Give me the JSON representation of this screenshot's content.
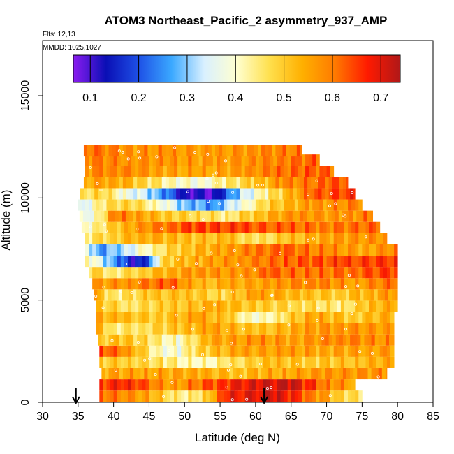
{
  "chart_data": {
    "type": "heatmap",
    "title": "ATOM3 Northeast_Pacific_2 asymmetry_937_AMP",
    "flights_label": "Flts: 12,13",
    "dates_label": "MMDD: 1025,1027",
    "xlabel": "Latitude (deg N)",
    "ylabel": "Altitude (m)",
    "xlim": [
      30,
      85
    ],
    "ylim": [
      0,
      17700
    ],
    "x_ticks": [
      "30",
      "35",
      "40",
      "45",
      "50",
      "55",
      "60",
      "65",
      "70",
      "75",
      "80",
      "85"
    ],
    "y_ticks": [
      "0",
      "5000",
      "10000",
      "15000"
    ],
    "colorbar": {
      "range": [
        0.065,
        0.74
      ],
      "tick_labels": [
        "0.1",
        "0.2",
        "0.3",
        "0.4",
        "0.5",
        "0.6",
        "0.7"
      ],
      "colors": [
        "#8b1cf0",
        "#0a0fb5",
        "#1e50e6",
        "#3aa8ff",
        "#d9f0ff",
        "#ffffd0",
        "#ffe04d",
        "#ffb000",
        "#ff7a00",
        "#ff1a00",
        "#b01818"
      ]
    },
    "arrows_latitude": [
      34.7,
      61.2
    ],
    "layers": [
      {
        "alt": 300,
        "lat": [
          38,
          75
        ],
        "stops": [
          [
            38,
            0.62
          ],
          [
            45,
            0.55
          ],
          [
            50,
            0.42
          ],
          [
            53,
            0.5
          ],
          [
            56,
            0.67
          ],
          [
            63,
            0.72
          ],
          [
            68,
            0.6
          ],
          [
            72,
            0.5
          ],
          [
            75,
            0.45
          ]
        ]
      },
      {
        "alt": 850,
        "lat": [
          38,
          74
        ],
        "stops": [
          [
            38,
            0.65
          ],
          [
            42,
            0.68
          ],
          [
            48,
            0.55
          ],
          [
            55,
            0.66
          ],
          [
            60,
            0.7
          ],
          [
            65,
            0.72
          ],
          [
            70,
            0.6
          ],
          [
            74,
            0.55
          ]
        ]
      },
      {
        "alt": 1400,
        "lat": [
          38.3,
          78.5
        ],
        "stops": [
          [
            38.3,
            0.55
          ],
          [
            45,
            0.56
          ],
          [
            52,
            0.54
          ],
          [
            58,
            0.52
          ],
          [
            64,
            0.55
          ],
          [
            70,
            0.57
          ],
          [
            78.5,
            0.58
          ]
        ]
      },
      {
        "alt": 1950,
        "lat": [
          38,
          79.5
        ],
        "stops": [
          [
            38,
            0.5
          ],
          [
            42,
            0.5
          ],
          [
            47,
            0.46
          ],
          [
            52,
            0.4
          ],
          [
            56,
            0.45
          ],
          [
            62,
            0.52
          ],
          [
            68,
            0.5
          ],
          [
            74,
            0.52
          ],
          [
            79.5,
            0.55
          ]
        ]
      },
      {
        "alt": 2500,
        "lat": [
          38,
          79.5
        ],
        "stops": [
          [
            38,
            0.65
          ],
          [
            42,
            0.58
          ],
          [
            46,
            0.42
          ],
          [
            49,
            0.38
          ],
          [
            52,
            0.5
          ],
          [
            58,
            0.55
          ],
          [
            64,
            0.56
          ],
          [
            70,
            0.55
          ],
          [
            76,
            0.56
          ],
          [
            79.5,
            0.57
          ]
        ]
      },
      {
        "alt": 3050,
        "lat": [
          37.8,
          79.5
        ],
        "stops": [
          [
            37.8,
            0.5
          ],
          [
            42,
            0.52
          ],
          [
            46,
            0.45
          ],
          [
            49,
            0.4
          ],
          [
            54,
            0.55
          ],
          [
            60,
            0.57
          ],
          [
            66,
            0.56
          ],
          [
            72,
            0.6
          ],
          [
            79.5,
            0.57
          ]
        ]
      },
      {
        "alt": 3600,
        "lat": [
          37.5,
          79.5
        ],
        "stops": [
          [
            37.5,
            0.55
          ],
          [
            40,
            0.45
          ],
          [
            44,
            0.47
          ],
          [
            50,
            0.52
          ],
          [
            54,
            0.56
          ],
          [
            60,
            0.5
          ],
          [
            66,
            0.55
          ],
          [
            72,
            0.58
          ],
          [
            79.5,
            0.56
          ]
        ]
      },
      {
        "alt": 4150,
        "lat": [
          37.5,
          79.5
        ],
        "stops": [
          [
            37.5,
            0.55
          ],
          [
            41,
            0.52
          ],
          [
            46,
            0.5
          ],
          [
            52,
            0.56
          ],
          [
            56,
            0.5
          ],
          [
            60,
            0.38
          ],
          [
            63,
            0.45
          ],
          [
            68,
            0.55
          ],
          [
            74,
            0.5
          ],
          [
            79.5,
            0.55
          ]
        ]
      },
      {
        "alt": 4700,
        "lat": [
          37.5,
          80
        ],
        "stops": [
          [
            37.5,
            0.52
          ],
          [
            42,
            0.46
          ],
          [
            48,
            0.5
          ],
          [
            54,
            0.54
          ],
          [
            60,
            0.5
          ],
          [
            66,
            0.48
          ],
          [
            72,
            0.45
          ],
          [
            76,
            0.52
          ],
          [
            80,
            0.55
          ]
        ]
      },
      {
        "alt": 5250,
        "lat": [
          37.2,
          80
        ],
        "stops": [
          [
            37.2,
            0.55
          ],
          [
            40,
            0.45
          ],
          [
            45,
            0.5
          ],
          [
            50,
            0.52
          ],
          [
            55,
            0.48
          ],
          [
            60,
            0.56
          ],
          [
            66,
            0.52
          ],
          [
            72,
            0.5
          ],
          [
            76,
            0.54
          ],
          [
            80,
            0.58
          ]
        ]
      },
      {
        "alt": 5800,
        "lat": [
          37,
          80
        ],
        "stops": [
          [
            37,
            0.56
          ],
          [
            42,
            0.58
          ],
          [
            48,
            0.63
          ],
          [
            52,
            0.52
          ],
          [
            56,
            0.54
          ],
          [
            62,
            0.56
          ],
          [
            68,
            0.6
          ],
          [
            74,
            0.56
          ],
          [
            80,
            0.62
          ]
        ]
      },
      {
        "alt": 6350,
        "lat": [
          36.5,
          80
        ],
        "stops": [
          [
            36.5,
            0.5
          ],
          [
            40,
            0.45
          ],
          [
            44,
            0.5
          ],
          [
            48,
            0.55
          ],
          [
            52,
            0.58
          ],
          [
            58,
            0.56
          ],
          [
            62,
            0.62
          ],
          [
            68,
            0.6
          ],
          [
            74,
            0.62
          ],
          [
            80,
            0.66
          ]
        ]
      },
      {
        "alt": 6900,
        "lat": [
          36,
          80
        ],
        "stops": [
          [
            36,
            0.45
          ],
          [
            39,
            0.3
          ],
          [
            41,
            0.22
          ],
          [
            43,
            0.12
          ],
          [
            45,
            0.2
          ],
          [
            47,
            0.5
          ],
          [
            52,
            0.55
          ],
          [
            58,
            0.58
          ],
          [
            64,
            0.62
          ],
          [
            72,
            0.64
          ],
          [
            80,
            0.66
          ]
        ]
      },
      {
        "alt": 7450,
        "lat": [
          36,
          80
        ],
        "stops": [
          [
            36,
            0.4
          ],
          [
            38,
            0.25
          ],
          [
            42,
            0.34
          ],
          [
            46,
            0.45
          ],
          [
            50,
            0.52
          ],
          [
            56,
            0.56
          ],
          [
            60,
            0.6
          ],
          [
            64,
            0.62
          ],
          [
            70,
            0.58
          ],
          [
            76,
            0.55
          ],
          [
            80,
            0.6
          ]
        ]
      },
      {
        "alt": 8000,
        "lat": [
          36,
          78.5
        ],
        "stops": [
          [
            36,
            0.45
          ],
          [
            40,
            0.5
          ],
          [
            44,
            0.55
          ],
          [
            50,
            0.52
          ],
          [
            56,
            0.52
          ],
          [
            60,
            0.45
          ],
          [
            64,
            0.5
          ],
          [
            70,
            0.56
          ],
          [
            78.5,
            0.58
          ]
        ]
      },
      {
        "alt": 8550,
        "lat": [
          35.5,
          77.5
        ],
        "stops": [
          [
            35.5,
            0.4
          ],
          [
            38,
            0.45
          ],
          [
            42,
            0.55
          ],
          [
            48,
            0.62
          ],
          [
            52,
            0.66
          ],
          [
            58,
            0.64
          ],
          [
            64,
            0.62
          ],
          [
            70,
            0.6
          ],
          [
            77.5,
            0.62
          ]
        ]
      },
      {
        "alt": 9100,
        "lat": [
          35.2,
          76.5
        ],
        "stops": [
          [
            35.2,
            0.35
          ],
          [
            38,
            0.42
          ],
          [
            40,
            0.6
          ],
          [
            44,
            0.55
          ],
          [
            48,
            0.5
          ],
          [
            52,
            0.48
          ],
          [
            56,
            0.45
          ],
          [
            60,
            0.52
          ],
          [
            66,
            0.58
          ],
          [
            72,
            0.56
          ],
          [
            76.5,
            0.6
          ]
        ]
      },
      {
        "alt": 9650,
        "lat": [
          35,
          75
        ],
        "stops": [
          [
            35,
            0.3
          ],
          [
            38,
            0.45
          ],
          [
            42,
            0.5
          ],
          [
            46,
            0.42
          ],
          [
            50,
            0.3
          ],
          [
            54,
            0.25
          ],
          [
            58,
            0.38
          ],
          [
            62,
            0.5
          ],
          [
            68,
            0.56
          ],
          [
            75,
            0.6
          ]
        ]
      },
      {
        "alt": 10200,
        "lat": [
          35.3,
          74
        ],
        "stops": [
          [
            35.3,
            0.45
          ],
          [
            38,
            0.5
          ],
          [
            42,
            0.38
          ],
          [
            46,
            0.3
          ],
          [
            50,
            0.12
          ],
          [
            54,
            0.1
          ],
          [
            58,
            0.32
          ],
          [
            62,
            0.45
          ],
          [
            68,
            0.62
          ],
          [
            74,
            0.66
          ]
        ]
      },
      {
        "alt": 10750,
        "lat": [
          35.8,
          73
        ],
        "stops": [
          [
            35.8,
            0.55
          ],
          [
            40,
            0.56
          ],
          [
            44,
            0.5
          ],
          [
            48,
            0.42
          ],
          [
            52,
            0.38
          ],
          [
            56,
            0.45
          ],
          [
            60,
            0.5
          ],
          [
            64,
            0.58
          ],
          [
            70,
            0.62
          ],
          [
            73,
            0.64
          ]
        ]
      },
      {
        "alt": 11300,
        "lat": [
          36,
          71
        ],
        "stops": [
          [
            36,
            0.58
          ],
          [
            40,
            0.6
          ],
          [
            46,
            0.56
          ],
          [
            52,
            0.55
          ],
          [
            58,
            0.56
          ],
          [
            62,
            0.6
          ],
          [
            66,
            0.62
          ],
          [
            71,
            0.62
          ]
        ]
      },
      {
        "alt": 11850,
        "lat": [
          36,
          69
        ],
        "stops": [
          [
            36,
            0.6
          ],
          [
            42,
            0.58
          ],
          [
            48,
            0.57
          ],
          [
            54,
            0.56
          ],
          [
            60,
            0.58
          ],
          [
            64,
            0.6
          ],
          [
            69,
            0.62
          ]
        ]
      },
      {
        "alt": 12300,
        "lat": [
          35.8,
          66.5
        ],
        "stops": [
          [
            35.8,
            0.62
          ],
          [
            42,
            0.58
          ],
          [
            48,
            0.57
          ],
          [
            54,
            0.56
          ],
          [
            60,
            0.58
          ],
          [
            66.5,
            0.6
          ]
        ]
      }
    ]
  }
}
